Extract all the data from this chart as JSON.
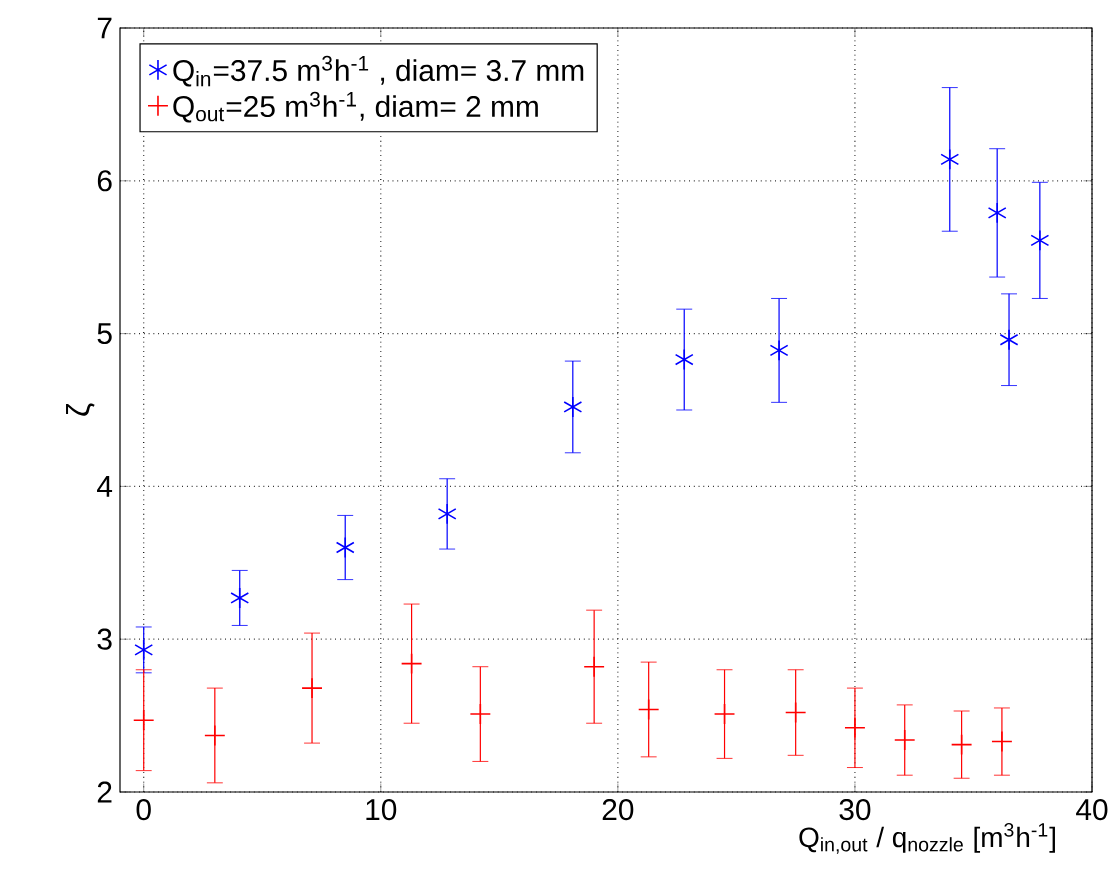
{
  "chart_data": {
    "type": "scatter",
    "xlabel": "Q$_{in,out}$ / q$_{nozzle}$ [m$^{3}$h$^{-1}$]",
    "ylabel": "ζ",
    "xlim": [
      -1,
      40
    ],
    "ylim": [
      2,
      7
    ],
    "xticks": [
      0,
      10,
      20,
      30,
      40
    ],
    "yticks": [
      2,
      3,
      4,
      5,
      6,
      7
    ],
    "grid": true,
    "legend": "top left",
    "series": [
      {
        "name": "Q$_{in}$=37.5 m$^{3}$h$^{-1}$  , diam= 3.7 mm",
        "color": "#0000ff",
        "x": [
          0,
          4.05,
          8.5,
          12.8,
          18.1,
          22.8,
          26.8,
          34.0,
          36.0,
          36.5,
          37.8
        ],
        "values": [
          2.93,
          3.27,
          3.6,
          3.82,
          4.52,
          4.83,
          4.89,
          6.14,
          5.79,
          4.96,
          5.61
        ],
        "errors": [
          0.15,
          0.18,
          0.21,
          0.23,
          0.3,
          0.33,
          0.34,
          0.47,
          0.42,
          0.3,
          0.38
        ]
      },
      {
        "name": "Q$_{out}$=25 m$^{3}$h$^{-1}$, diam=  2   mm",
        "color": "#ff0000",
        "marker": "cross",
        "x": [
          0,
          3.0,
          7.1,
          11.3,
          14.2,
          19.0,
          21.3,
          24.5,
          27.5,
          30.0,
          32.1,
          34.5,
          36.2
        ],
        "values": [
          2.47,
          2.37,
          2.68,
          2.84,
          2.51,
          2.82,
          2.54,
          2.51,
          2.52,
          2.42,
          2.34,
          2.31,
          2.33
        ],
        "errors": [
          0.33,
          0.31,
          0.36,
          0.39,
          0.31,
          0.37,
          0.31,
          0.29,
          0.28,
          0.26,
          0.23,
          0.22,
          0.22
        ]
      }
    ]
  }
}
